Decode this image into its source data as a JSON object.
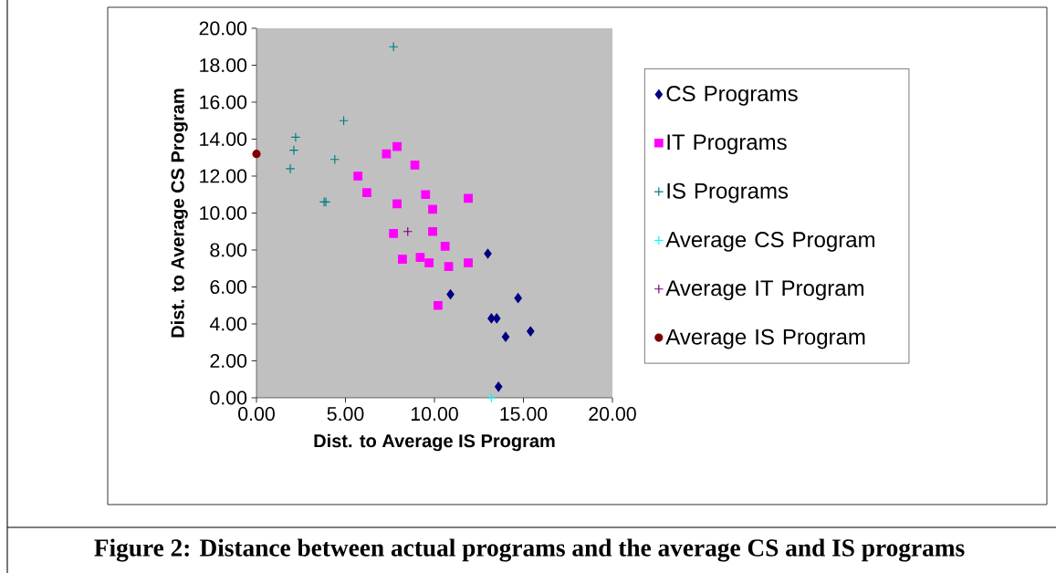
{
  "chart_data": {
    "type": "scatter",
    "xlabel": "Dist. to Average IS Program",
    "ylabel": "Dist. to Average CS Program",
    "xlim": [
      0,
      20
    ],
    "ylim": [
      0,
      20
    ],
    "xticks": [
      {
        "value": 0,
        "label": "0.00"
      },
      {
        "value": 5,
        "label": "5.00"
      },
      {
        "value": 10,
        "label": "10.00"
      },
      {
        "value": 15,
        "label": "15.00"
      },
      {
        "value": 20,
        "label": "20.00"
      }
    ],
    "yticks": [
      {
        "value": 0,
        "label": "0.00"
      },
      {
        "value": 2,
        "label": "2.00"
      },
      {
        "value": 4,
        "label": "4.00"
      },
      {
        "value": 6,
        "label": "6.00"
      },
      {
        "value": 8,
        "label": "8.00"
      },
      {
        "value": 10,
        "label": "10.00"
      },
      {
        "value": 12,
        "label": "12.00"
      },
      {
        "value": 14,
        "label": "14.00"
      },
      {
        "value": 16,
        "label": "16.00"
      },
      {
        "value": 18,
        "label": "18.00"
      },
      {
        "value": 20,
        "label": "20.00"
      }
    ],
    "legend": "right",
    "series": [
      {
        "name": "CS Programs",
        "color": "#000080",
        "marker": "diamond",
        "x": [
          13.0,
          10.9,
          14.7,
          13.2,
          13.5,
          15.4,
          14.0,
          13.6
        ],
        "values": [
          7.8,
          5.6,
          5.4,
          4.3,
          4.3,
          3.6,
          3.3,
          0.6
        ]
      },
      {
        "name": "IT Programs",
        "color": "#ff00ff",
        "marker": "square",
        "x": [
          7.9,
          7.3,
          8.9,
          5.7,
          6.2,
          9.5,
          11.9,
          7.9,
          9.9,
          9.9,
          7.7,
          10.6,
          8.2,
          9.2,
          9.7,
          10.8,
          11.9,
          10.2
        ],
        "values": [
          13.6,
          13.2,
          12.6,
          12.0,
          11.1,
          11.0,
          10.8,
          10.5,
          10.2,
          9.0,
          8.9,
          8.2,
          7.5,
          7.6,
          7.3,
          7.1,
          7.3,
          5.0
        ]
      },
      {
        "name": "IS Programs",
        "color": "#008080",
        "marker": "cross",
        "x": [
          7.7,
          4.9,
          2.2,
          2.1,
          4.4,
          1.9,
          3.8,
          3.9
        ],
        "values": [
          19.0,
          15.0,
          14.1,
          13.4,
          12.9,
          12.4,
          10.6,
          10.6
        ]
      },
      {
        "name": "Average CS Program",
        "color": "#00ffff",
        "marker": "cross",
        "x": [
          13.2
        ],
        "values": [
          0.0
        ]
      },
      {
        "name": "Average IT Program",
        "color": "#800080",
        "marker": "cross",
        "x": [
          8.5
        ],
        "values": [
          9.0
        ]
      },
      {
        "name": "Average IS Program",
        "color": "#800000",
        "marker": "circle",
        "x": [
          0.0
        ],
        "values": [
          13.2
        ]
      }
    ],
    "annotations": [
      "Figure 2: Distance between actual programs and the average CS and IS programs"
    ]
  }
}
